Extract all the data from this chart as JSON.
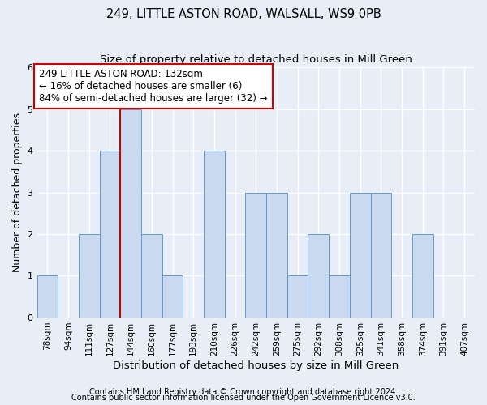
{
  "title": "249, LITTLE ASTON ROAD, WALSALL, WS9 0PB",
  "subtitle": "Size of property relative to detached houses in Mill Green",
  "xlabel": "Distribution of detached houses by size in Mill Green",
  "ylabel": "Number of detached properties",
  "categories": [
    "78sqm",
    "94sqm",
    "111sqm",
    "127sqm",
    "144sqm",
    "160sqm",
    "177sqm",
    "193sqm",
    "210sqm",
    "226sqm",
    "242sqm",
    "259sqm",
    "275sqm",
    "292sqm",
    "308sqm",
    "325sqm",
    "341sqm",
    "358sqm",
    "374sqm",
    "391sqm",
    "407sqm"
  ],
  "values": [
    1,
    0,
    2,
    4,
    5,
    2,
    1,
    0,
    4,
    0,
    3,
    3,
    1,
    2,
    1,
    3,
    3,
    0,
    2,
    0,
    0
  ],
  "bar_color": "#c9d9f0",
  "bar_edge_color": "#6699cc",
  "red_line_x": 3.5,
  "annotation_text": "249 LITTLE ASTON ROAD: 132sqm\n← 16% of detached houses are smaller (6)\n84% of semi-detached houses are larger (32) →",
  "annotation_box_facecolor": "#ffffff",
  "annotation_box_edgecolor": "#cc0000",
  "ylim": [
    0,
    6
  ],
  "yticks": [
    0,
    1,
    2,
    3,
    4,
    5,
    6
  ],
  "footnote1": "Contains HM Land Registry data © Crown copyright and database right 2024.",
  "footnote2": "Contains public sector information licensed under the Open Government Licence v3.0.",
  "background_color": "#e8eef8",
  "plot_bg_color": "#e8eef8",
  "grid_color": "#ffffff",
  "title_fontsize": 10.5,
  "subtitle_fontsize": 9.5,
  "tick_fontsize": 7.5,
  "ylabel_fontsize": 9,
  "xlabel_fontsize": 9.5,
  "annotation_fontsize": 8.5,
  "footnote_fontsize": 7
}
